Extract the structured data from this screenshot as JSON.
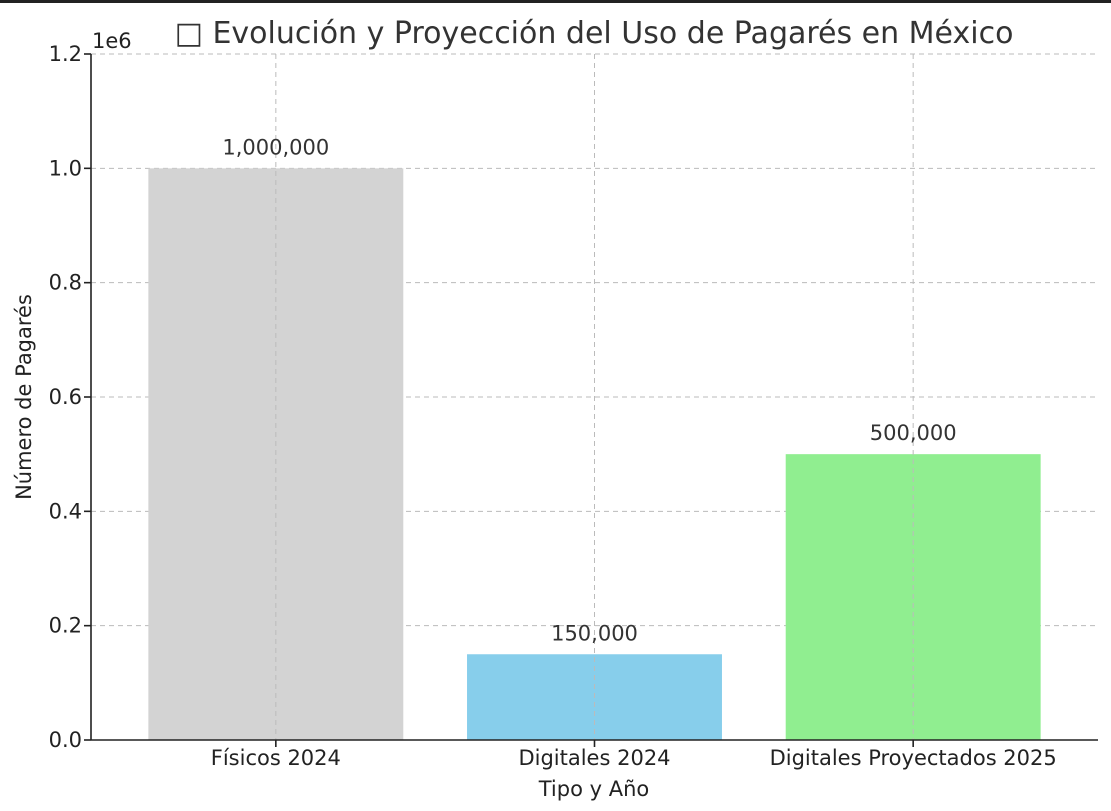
{
  "chart_data": {
    "type": "bar",
    "title": "□ Evolución y Proyección del Uso de Pagarés en México",
    "xlabel": "Tipo y Año",
    "ylabel": "Número de Pagarés",
    "y_offset_text": "1e6",
    "categories": [
      "Físicos 2024",
      "Digitales 2024",
      "Digitales Proyectados 2025"
    ],
    "values": [
      1000000,
      150000,
      500000
    ],
    "data_labels": [
      "1,000,000",
      "150,000",
      "500,000"
    ],
    "colors": [
      "#d3d3d3",
      "#87ceeb",
      "#90ee90"
    ],
    "ylim": [
      0,
      1200000
    ],
    "yticks": [
      0,
      200000,
      400000,
      600000,
      800000,
      1000000,
      1200000
    ],
    "ytick_labels": [
      "0.0",
      "0.2",
      "0.4",
      "0.6",
      "0.8",
      "1.0",
      "1.2"
    ],
    "grid": true,
    "legend": "none"
  }
}
